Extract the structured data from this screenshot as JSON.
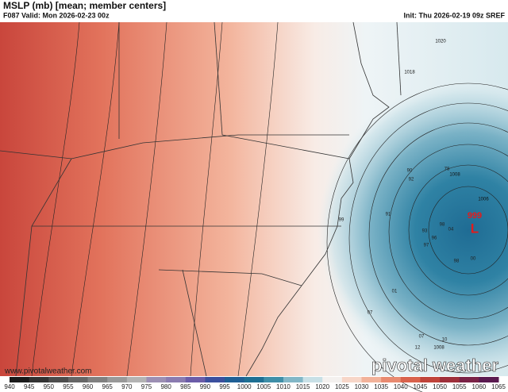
{
  "header": {
    "title": "MSLP (mb) [mean; member centers]",
    "valid": "F087 Valid: Mon 2026-02-23 00z",
    "init": "Init: Thu 2026-02-19 09z SREF"
  },
  "map": {
    "isobar_labels": [
      "1020",
      "1018",
      "1008",
      "1006",
      "1008"
    ],
    "low_center": {
      "pressure": "999",
      "symbol": "L"
    },
    "member_centers": [
      "90",
      "78",
      "92",
      "91",
      "98",
      "04",
      "93",
      "96",
      "97",
      "98",
      "00",
      "99",
      "01",
      "07",
      "07",
      "10",
      "12"
    ]
  },
  "colorbar": {
    "ticks": [
      940,
      945,
      950,
      955,
      960,
      965,
      970,
      975,
      980,
      985,
      990,
      995,
      1000,
      1005,
      1010,
      1015,
      1020,
      1025,
      1030,
      1035,
      1040,
      1045,
      1050,
      1055,
      1060,
      1065
    ],
    "colors": [
      "#1a1a1a",
      "#333333",
      "#4d4d4d",
      "#666666",
      "#808080",
      "#999999",
      "#b3b3b3",
      "#9c8fb3",
      "#8a7bb0",
      "#6b5ca8",
      "#3b4f9e",
      "#1f5f95",
      "#1e6f93",
      "#3f8fa8",
      "#82b7c7",
      "#c8e0e6",
      "#f4f1ef",
      "#f7d6c8",
      "#f2b29a",
      "#e88a70",
      "#d9624c",
      "#c0443a",
      "#9e2f3a",
      "#7a2246",
      "#5a1a50"
    ]
  },
  "footer": {
    "url": "www.pivotalweather.com",
    "logo": "pivotal weather"
  }
}
